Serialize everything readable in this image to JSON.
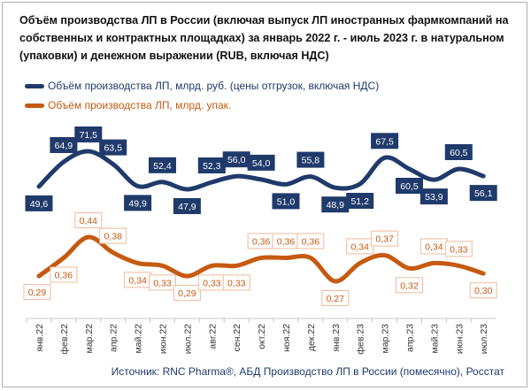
{
  "title": "Объём производства ЛП в России (включая выпуск ЛП иностранных фармкомпаний на собственных и контрактных площадках) за январь 2022 г. - июль 2023 г. в натуральном (упаковки) и денежном выражении (RUB, включая НДС)",
  "source": "Источник: RNC Pharma®, АБД Производство ЛП в России (помесячно), Росстат",
  "colors": {
    "navy": "#1f3a6b",
    "orange": "#c55a11"
  },
  "chart_data": {
    "type": "line",
    "categories": [
      "янв.22",
      "фев.22",
      "мар.22",
      "апр.22",
      "май.22",
      "июн.22",
      "июл.22",
      "авг.22",
      "сен.22",
      "окт.22",
      "ноя.22",
      "дек.22",
      "янв.23",
      "фев.23",
      "мар.23",
      "апр.23",
      "май.23",
      "июн.23",
      "июл.23"
    ],
    "series": [
      {
        "name": "Объём производства ЛП, млрд. руб. (цены отгрузок, включая НДС)",
        "color": "#1f3a6b",
        "values": [
          49.6,
          64.9,
          71.5,
          63.5,
          49.9,
          52.4,
          47.9,
          52.3,
          56.0,
          54.0,
          51.0,
          55.8,
          48.9,
          51.2,
          67.5,
          60.5,
          53.9,
          60.5,
          56.1
        ],
        "labels": [
          "49,6",
          "64,9",
          "71,5",
          "63,5",
          "49,9",
          "52,4",
          "47,9",
          "52,3",
          "56,0",
          "54,0",
          "51,0",
          "55,8",
          "48,9",
          "51,2",
          "67,5",
          "60,5",
          "53,9",
          "60,5",
          "56,1"
        ],
        "label_pos": [
          "below",
          "above",
          "above",
          "above",
          "below",
          "above",
          "below",
          "above",
          "above",
          "above",
          "below",
          "above",
          "below",
          "below",
          "above",
          "below",
          "below",
          "above",
          "below"
        ]
      },
      {
        "name": "Объём производства ЛП, млрд. упак.",
        "color": "#c55a11",
        "values": [
          0.29,
          0.36,
          0.44,
          0.38,
          0.34,
          0.33,
          0.29,
          0.33,
          0.33,
          0.36,
          0.36,
          0.36,
          0.27,
          0.34,
          0.37,
          0.32,
          0.34,
          0.33,
          0.3
        ],
        "labels": [
          "0,29",
          "0,36",
          "0,44",
          "0,38",
          "0,34",
          "0,33",
          "0,29",
          "0,33",
          "0,33",
          "0,36",
          "0,36",
          "0,36",
          "0,27",
          "0,34",
          "0,37",
          "0,32",
          "0,34",
          "0,33",
          "0,30"
        ],
        "label_pos": [
          "left",
          "below",
          "above",
          "above",
          "below",
          "below",
          "below",
          "below",
          "below",
          "above",
          "above",
          "above",
          "below",
          "above",
          "above",
          "below",
          "above",
          "above",
          "below"
        ]
      }
    ],
    "data_labels": true,
    "grid": false,
    "legend_placement": "top-left"
  }
}
